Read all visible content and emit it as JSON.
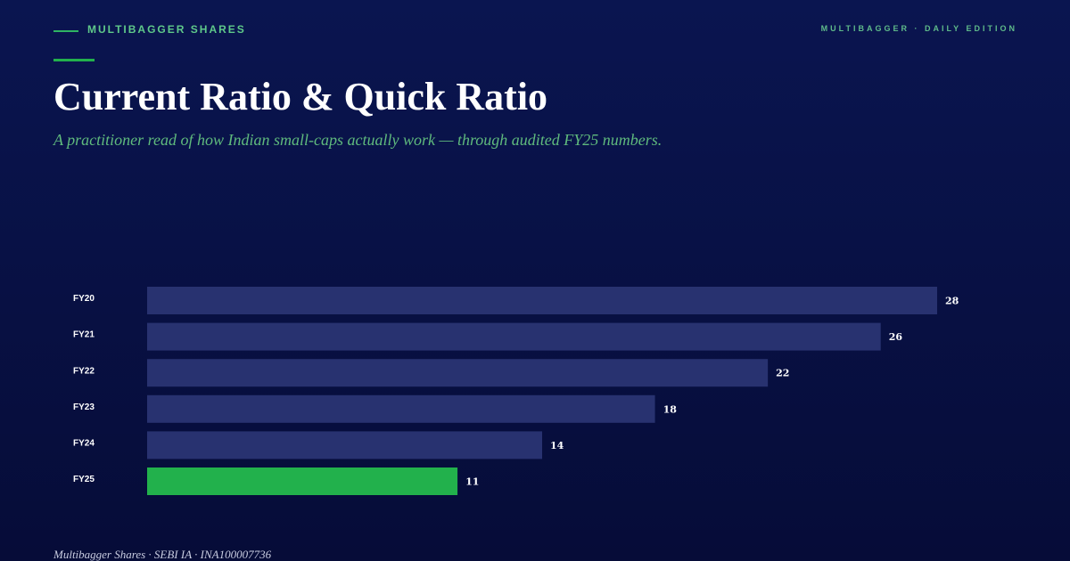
{
  "header": {
    "brand": "MULTIBAGGER SHARES",
    "edition": "MULTIBAGGER · DAILY EDITION"
  },
  "chart_data": {
    "type": "bar",
    "orientation": "horizontal",
    "title": "Current Ratio & Quick Ratio",
    "subtitle": "A practitioner read of how Indian small-caps actually work — through audited FY25 numbers.",
    "categories": [
      "FY20",
      "FY21",
      "FY22",
      "FY23",
      "FY24",
      "FY25"
    ],
    "values": [
      28,
      26,
      22,
      18,
      14,
      11
    ],
    "colors": [
      "#283270",
      "#283270",
      "#283270",
      "#283270",
      "#283270",
      "#22b14c"
    ]
  },
  "footer": "Multibagger Shares · SEBI IA · INA100007736"
}
